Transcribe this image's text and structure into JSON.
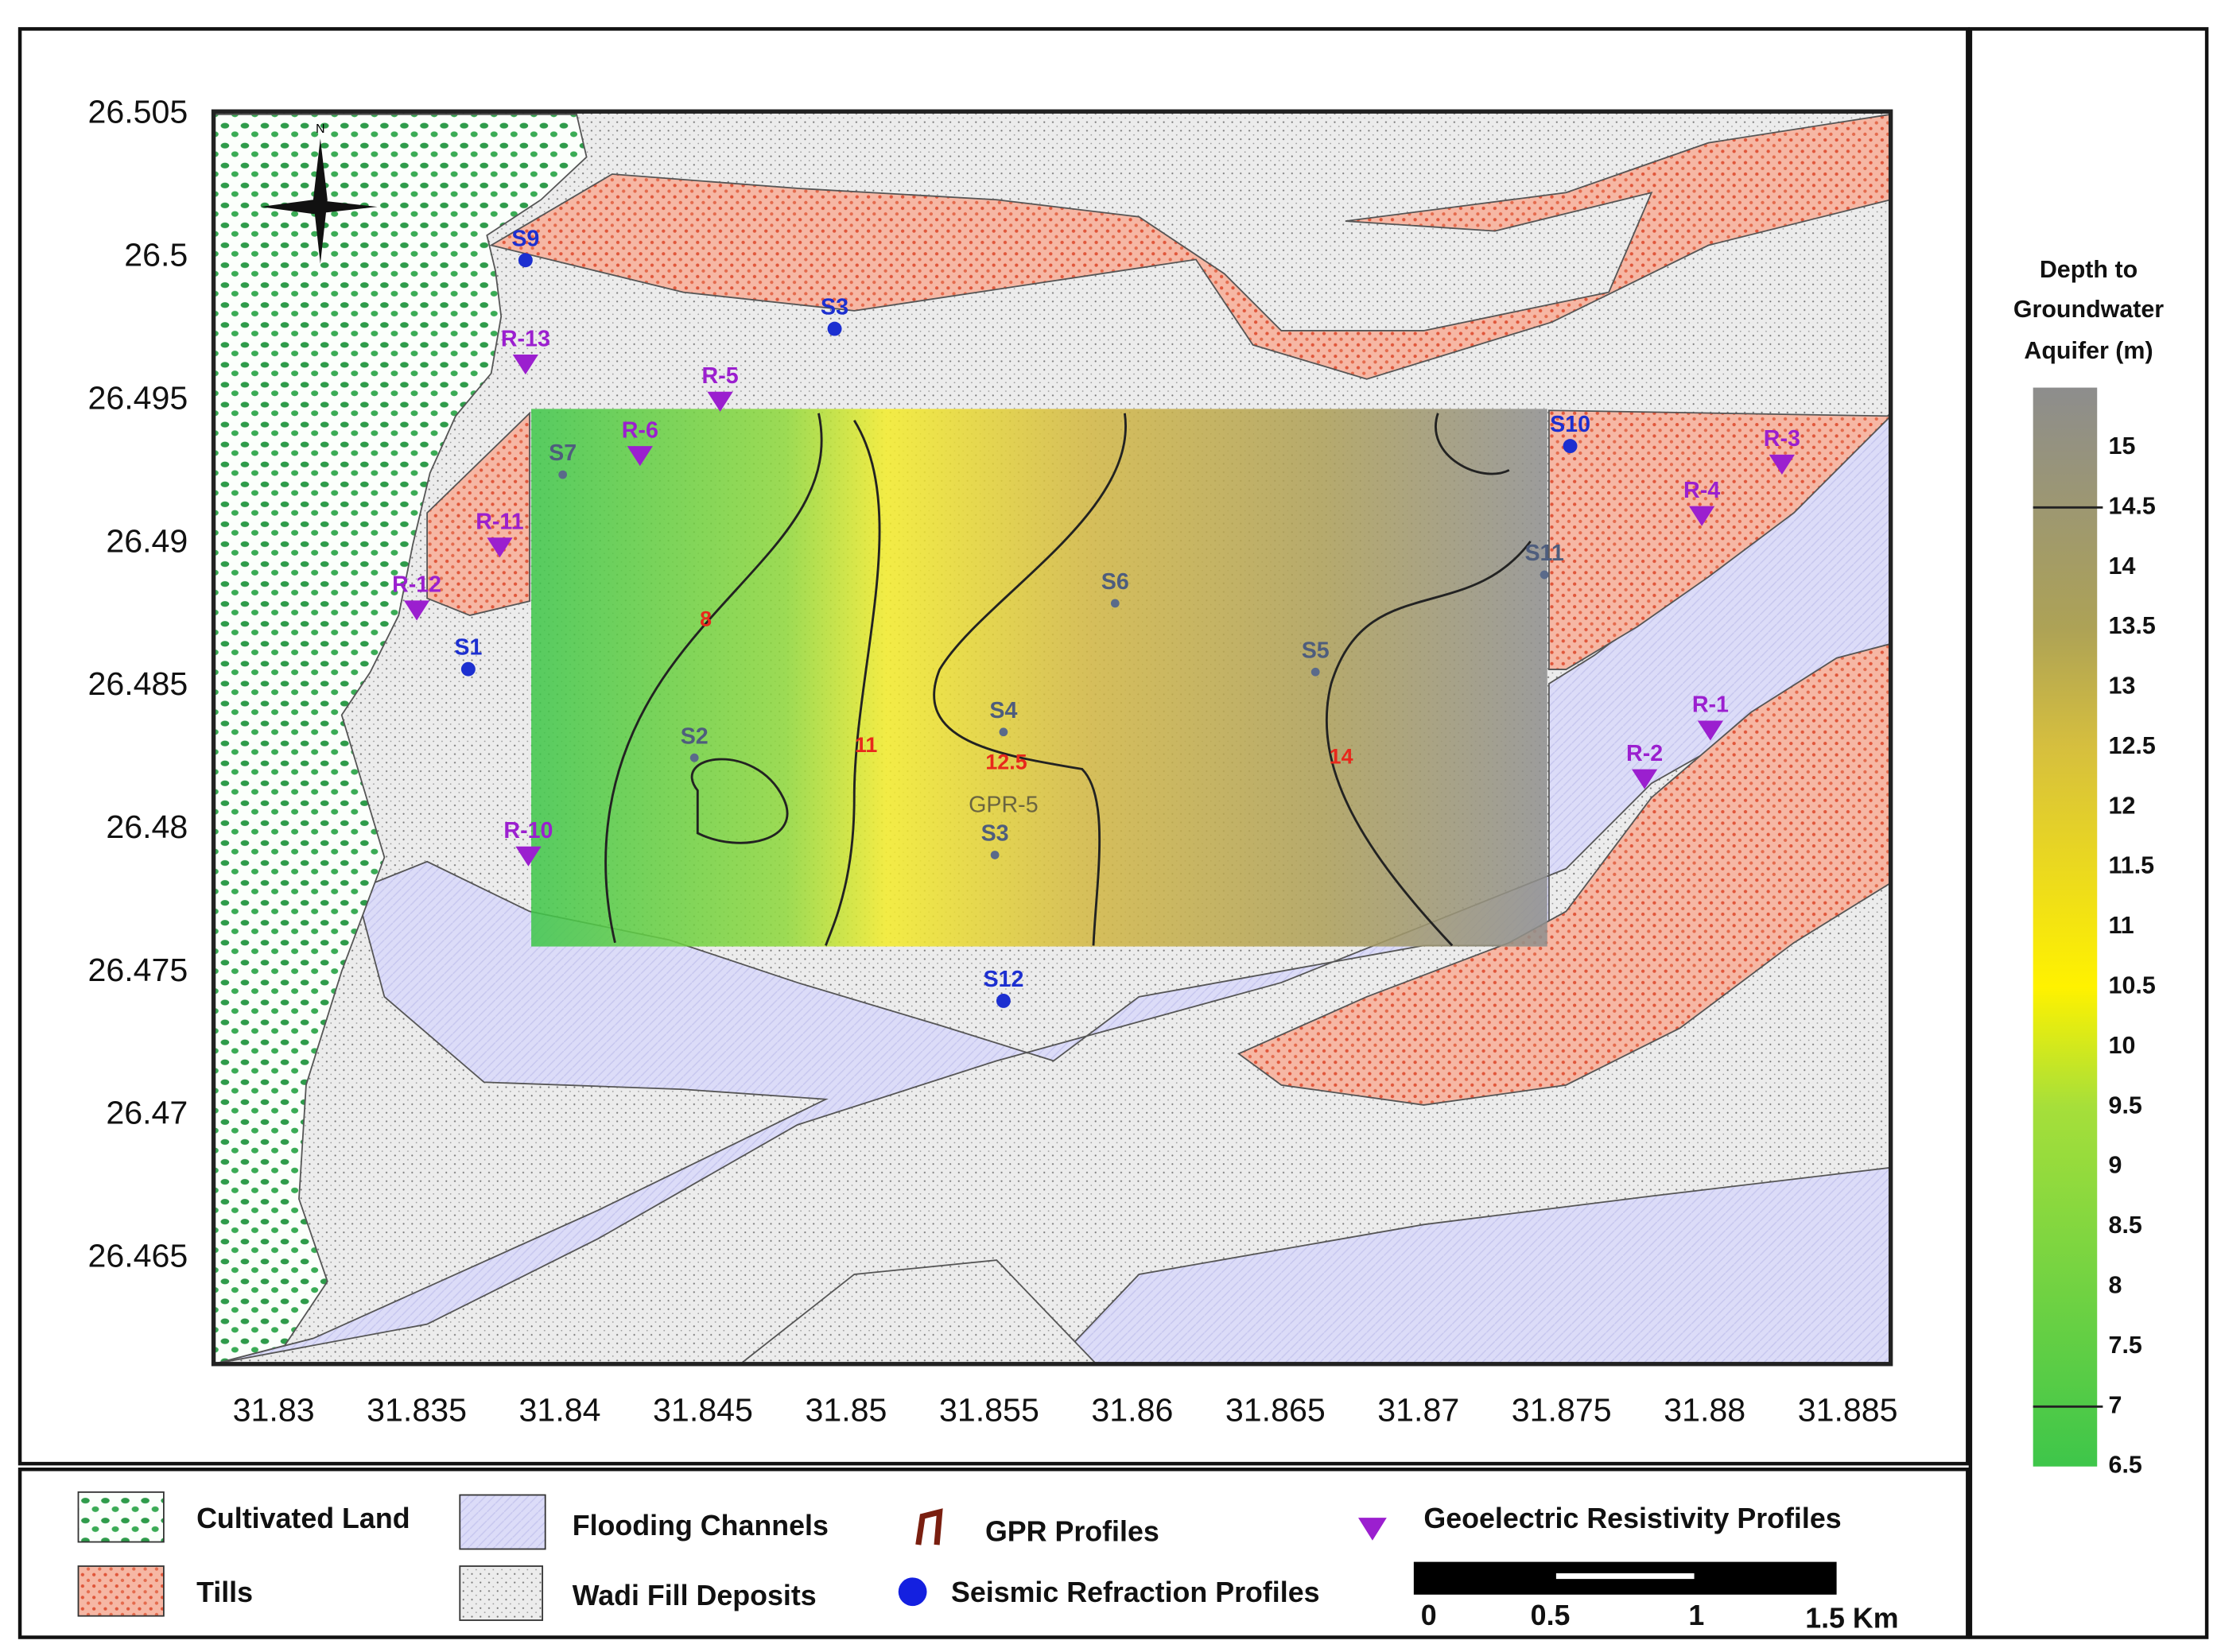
{
  "map": {
    "xlim": [
      31.8279,
      31.8865
    ],
    "ylim": [
      26.4613,
      26.5051
    ],
    "xticks": [
      31.83,
      31.835,
      31.84,
      31.845,
      31.85,
      31.855,
      31.86,
      31.865,
      31.87,
      31.875,
      31.88,
      31.885
    ],
    "yticks": [
      26.465,
      26.47,
      26.475,
      26.48,
      26.485,
      26.49,
      26.495,
      26.5,
      26.505
    ],
    "north_label": "N",
    "seismic_profiles": [
      {
        "name": "S9",
        "lon": 31.8388,
        "lat": 26.4999
      },
      {
        "name": "S3",
        "lon": 31.8496,
        "lat": 26.4975
      },
      {
        "name": "S7",
        "lon": 31.8401,
        "lat": 26.4924
      },
      {
        "name": "S1",
        "lon": 31.8368,
        "lat": 26.4856
      },
      {
        "name": "S2",
        "lon": 31.8447,
        "lat": 26.4825
      },
      {
        "name": "S6",
        "lon": 31.8594,
        "lat": 26.4879
      },
      {
        "name": "S5",
        "lon": 31.8664,
        "lat": 26.4855
      },
      {
        "name": "S4",
        "lon": 31.8555,
        "lat": 26.4834
      },
      {
        "name": "S3",
        "lon": 31.8552,
        "lat": 26.4791
      },
      {
        "name": "S10",
        "lon": 31.8753,
        "lat": 26.4934
      },
      {
        "name": "S11",
        "lon": 31.8744,
        "lat": 26.4889
      },
      {
        "name": "S12",
        "lon": 31.8555,
        "lat": 26.474
      }
    ],
    "resistivity_profiles": [
      {
        "name": "R-13",
        "lon": 31.8388,
        "lat": 26.4963
      },
      {
        "name": "R-5",
        "lon": 31.8456,
        "lat": 26.495
      },
      {
        "name": "R-6",
        "lon": 31.8428,
        "lat": 26.4931
      },
      {
        "name": "R-11",
        "lon": 31.8379,
        "lat": 26.4899
      },
      {
        "name": "R-12",
        "lon": 31.835,
        "lat": 26.4877
      },
      {
        "name": "R-10",
        "lon": 31.8389,
        "lat": 26.4791
      },
      {
        "name": "R-4",
        "lon": 31.8799,
        "lat": 26.491
      },
      {
        "name": "R-3",
        "lon": 31.8827,
        "lat": 26.4928
      },
      {
        "name": "R-1",
        "lon": 31.8802,
        "lat": 26.4835
      },
      {
        "name": "R-2",
        "lon": 31.8779,
        "lat": 26.4818
      }
    ],
    "gpr_labels": [
      {
        "name": "GPR-5",
        "lon": 31.8555,
        "lat": 26.4806
      }
    ],
    "contour_labels": [
      {
        "value": 8,
        "lon": 31.8451,
        "lat": 26.4871
      },
      {
        "value": 11,
        "lon": 31.8507,
        "lat": 26.4827
      },
      {
        "value": 12.5,
        "lon": 31.8556,
        "lat": 26.4821
      },
      {
        "value": 14,
        "lon": 31.8673,
        "lat": 26.4823
      }
    ],
    "overlay_extent": {
      "lon": [
        31.839,
        31.8745
      ],
      "lat": [
        26.4759,
        26.4947
      ]
    }
  },
  "colorbar": {
    "title_lines": [
      "Depth to",
      "Groundwater",
      "Aquifer (m)"
    ],
    "lim": [
      6.5,
      15.5
    ],
    "ticks": [
      15,
      14.5,
      14,
      13.5,
      13,
      12.5,
      12,
      11.5,
      11,
      10.5,
      10,
      9.5,
      9,
      8.5,
      8,
      7.5,
      7,
      6.5
    ],
    "contour_ticks": [
      7,
      14.5
    ],
    "stops": [
      {
        "value": 6.5,
        "color": "#3ec64a"
      },
      {
        "value": 9.5,
        "color": "#a6df3a"
      },
      {
        "value": 10.5,
        "color": "#fff200"
      },
      {
        "value": 12.5,
        "color": "#d6bf3e"
      },
      {
        "value": 13.5,
        "color": "#ada256"
      },
      {
        "value": 15.5,
        "color": "#8d8d8d"
      }
    ]
  },
  "legend": [
    "Cultivated Land",
    "Tills",
    "Flooding Channels",
    "Wadi Fill Deposits",
    "GPR Profiles",
    "Seismic Refraction Profiles",
    "Geoelectric Resistivity Profiles"
  ],
  "scale_bar": [
    "0",
    "0.5",
    "1",
    "1.5 Km"
  ]
}
